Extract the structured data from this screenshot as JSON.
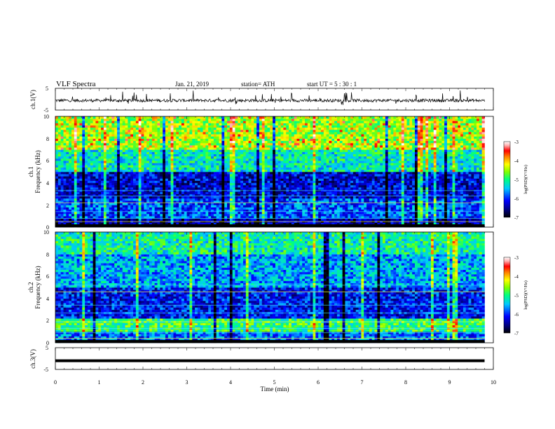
{
  "header": {
    "title": "VLF  Spectra",
    "date": "Jan.  21,  2019",
    "station": "station= ATH",
    "start": "start   UT  =    5  : 30 : 1"
  },
  "chart_data": [
    {
      "panel": "ch1-waveform",
      "type": "line",
      "ylabel": "ch.1(V)",
      "ylim": [
        -5,
        5
      ],
      "ytick_labels": [
        "5",
        "-5"
      ],
      "xlim": [
        0,
        10
      ],
      "trace_color": "#000000"
    },
    {
      "panel": "ch1-spectrogram",
      "type": "heatmap",
      "ylabel_top": "ch.1",
      "ylabel": "Frequency  (kHz)",
      "ylim": [
        0,
        10
      ],
      "ytick_labels": [
        "0",
        "2",
        "4",
        "6",
        "8",
        "10"
      ],
      "xlim": [
        0,
        10
      ],
      "data_end_min": 9.8,
      "colorbar": {
        "label": "log(PSD)(V²/Hz)",
        "ticks": [
          "-3",
          "-4",
          "-5",
          "-6",
          "-7"
        ],
        "range": [
          -7,
          -3
        ]
      }
    },
    {
      "panel": "ch2-spectrogram",
      "type": "heatmap",
      "ylabel_top": "ch.2",
      "ylabel": "Frequency  (kHz)",
      "ylim": [
        0,
        10
      ],
      "ytick_labels": [
        "0",
        "2",
        "4",
        "6",
        "8",
        "10"
      ],
      "xlim": [
        0,
        10
      ],
      "data_end_min": 9.8,
      "colorbar": {
        "label": "log(PSD)(V²/Hz)",
        "ticks": [
          "-3",
          "-4",
          "-5",
          "-6",
          "-7"
        ],
        "range": [
          -7,
          -3
        ]
      }
    },
    {
      "panel": "ch3-waveform",
      "type": "line",
      "ylabel": "ch.3(V)",
      "ylim": [
        -5,
        5
      ],
      "ytick_labels": [
        "5",
        "-5"
      ],
      "xlim": [
        0,
        10
      ],
      "trace_value_V": -1,
      "trace_color": "#000000"
    }
  ],
  "x_axis": {
    "label": "Time  (min)",
    "ticks": [
      "0",
      "1",
      "2",
      "3",
      "4",
      "5",
      "6",
      "7",
      "8",
      "9",
      "10"
    ],
    "range": [
      0,
      10
    ]
  },
  "colormap": [
    "#000000",
    "#00007f",
    "#0000ff",
    "#00c8ff",
    "#00ff80",
    "#80ff00",
    "#ffff00",
    "#ff8000",
    "#ff0000",
    "#ffb0b0",
    "#ffffff"
  ]
}
